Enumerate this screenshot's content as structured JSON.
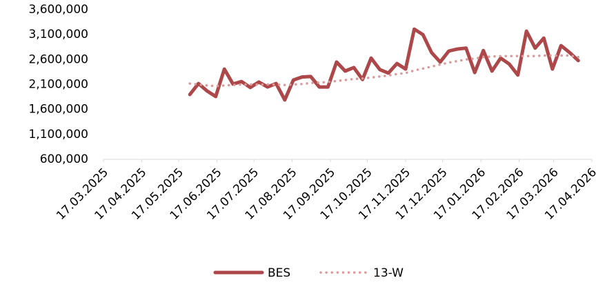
{
  "chart_data": {
    "type": "line",
    "x": [
      "26.05.2025",
      "02.06.2025",
      "09.06.2025",
      "16.06.2025",
      "23.06.2025",
      "30.06.2025",
      "07.07.2025",
      "14.07.2025",
      "21.07.2025",
      "28.07.2025",
      "04.08.2025",
      "11.08.2025",
      "18.08.2025",
      "25.08.2025",
      "01.09.2025",
      "08.09.2025",
      "15.09.2025",
      "22.09.2025",
      "29.09.2025",
      "06.10.2025",
      "13.10.2025",
      "20.10.2025",
      "27.10.2025",
      "03.11.2025",
      "10.11.2025",
      "17.11.2025",
      "24.11.2025",
      "01.12.2025",
      "08.12.2025",
      "15.12.2025",
      "22.12.2025",
      "29.12.2025",
      "05.01.2026",
      "12.01.2026",
      "19.01.2026",
      "26.01.2026",
      "02.02.2026",
      "09.02.2026",
      "16.02.2026",
      "23.02.2026",
      "02.03.2026",
      "09.03.2026",
      "16.03.2026",
      "23.03.2026",
      "30.03.2026",
      "06.04.2026"
    ],
    "series": [
      {
        "name": "BES",
        "color": "#ad4749",
        "style": "solid",
        "values": [
          1900000,
          2120000,
          1970000,
          1860000,
          2410000,
          2110000,
          2160000,
          2040000,
          2150000,
          2050000,
          2120000,
          1790000,
          2190000,
          2250000,
          2260000,
          2050000,
          2050000,
          2550000,
          2370000,
          2440000,
          2200000,
          2630000,
          2400000,
          2330000,
          2520000,
          2410000,
          3210000,
          3100000,
          2740000,
          2550000,
          2770000,
          2810000,
          2830000,
          2340000,
          2780000,
          2370000,
          2630000,
          2510000,
          2290000,
          3170000,
          2830000,
          3030000,
          2410000,
          2880000,
          2740000,
          2580000
        ]
      },
      {
        "name": "13-W",
        "color": "#d89a9b",
        "style": "dotted",
        "values": [
          2120000,
          2100000,
          2080000,
          2070000,
          2080000,
          2090000,
          2100000,
          2100000,
          2100000,
          2100000,
          2100000,
          2090000,
          2100000,
          2110000,
          2130000,
          2140000,
          2150000,
          2170000,
          2190000,
          2210000,
          2220000,
          2240000,
          2260000,
          2280000,
          2310000,
          2330000,
          2380000,
          2420000,
          2460000,
          2500000,
          2540000,
          2570000,
          2600000,
          2620000,
          2650000,
          2660000,
          2670000,
          2670000,
          2670000,
          2670000,
          2670000,
          2680000,
          2680000,
          2680000,
          2680000,
          2650000
        ]
      }
    ],
    "xlim": [
      "17.03.2025",
      "17.04.2026"
    ],
    "xticks": [
      "17.03.2025",
      "17.04.2025",
      "17.05.2025",
      "17.06.2025",
      "17.07.2025",
      "17.08.2025",
      "17.09.2025",
      "17.10.2025",
      "17.11.2025",
      "17.12.2025",
      "17.01.2026",
      "17.02.2026",
      "17.03.2026",
      "17.04.2026"
    ],
    "ylim": [
      600000,
      3600000
    ],
    "yticks": [
      {
        "value": 600000,
        "label": "600,000"
      },
      {
        "value": 1100000,
        "label": "1,100,000"
      },
      {
        "value": 1600000,
        "label": "1,600,000"
      },
      {
        "value": 2100000,
        "label": "2,100,000"
      },
      {
        "value": 2600000,
        "label": "2,600,000"
      },
      {
        "value": 3100000,
        "label": "3,100,000"
      },
      {
        "value": 3600000,
        "label": "3,600,000"
      }
    ],
    "grid": false,
    "legend": "bottom"
  }
}
